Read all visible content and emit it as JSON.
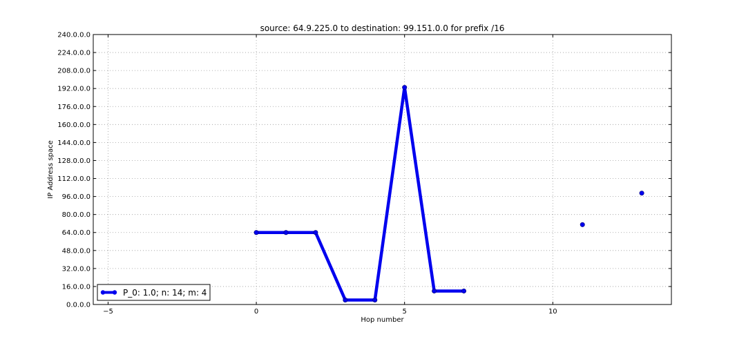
{
  "chart_data": {
    "type": "line",
    "title": "source: 64.9.225.0 to destination: 99.151.0.0 for prefix /16",
    "xlabel": "Hop number",
    "ylabel": "IP Address space",
    "xlim": [
      -5.5,
      14
    ],
    "ylim": [
      0,
      240
    ],
    "x_ticks": [
      -5,
      0,
      5,
      10
    ],
    "x_tick_labels": [
      "−5",
      "0",
      "5",
      "10"
    ],
    "y_ticks": [
      0,
      16,
      32,
      48,
      64,
      80,
      96,
      112,
      128,
      144,
      160,
      176,
      192,
      208,
      224,
      240
    ],
    "y_tick_labels": [
      "0.0.0.0",
      "16.0.0.0",
      "32.0.0.0",
      "48.0.0.0",
      "64.0.0.0",
      "80.0.0.0",
      "96.0.0.0",
      "112.0.0.0",
      "128.0.0.0",
      "144.0.0.0",
      "160.0.0.0",
      "176.0.0.0",
      "192.0.0.0",
      "208.0.0.0",
      "224.0.0.0",
      "240.0.0.0"
    ],
    "grid": true,
    "legend_position": "bottom-left",
    "series": [
      {
        "name": "P_0: 1.0; n: 14; m: 4",
        "color": "#0000ee",
        "segments": [
          [
            [
              0,
              64
            ],
            [
              1,
              64
            ],
            [
              2,
              64
            ],
            [
              3,
              4
            ],
            [
              4,
              4
            ],
            [
              5,
              193
            ],
            [
              6,
              12
            ],
            [
              7,
              12
            ]
          ],
          [
            [
              11,
              71
            ]
          ],
          [
            [
              13,
              99
            ]
          ]
        ]
      }
    ]
  }
}
